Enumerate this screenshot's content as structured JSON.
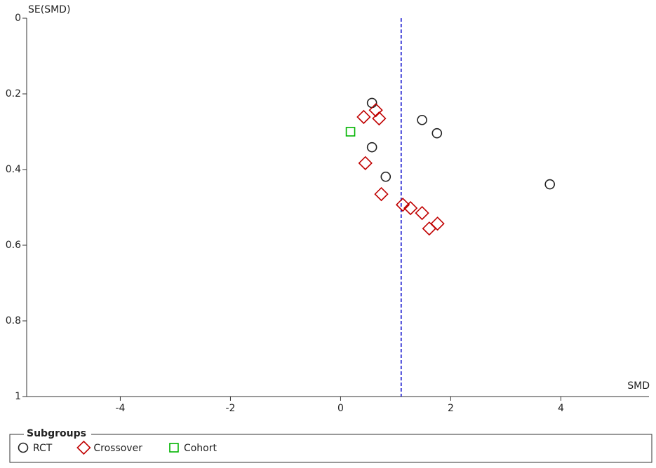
{
  "chart_data": {
    "type": "scatter",
    "x_label": "SMD",
    "y_label": "SE(SMD)",
    "xlim": [
      -5.7,
      5.6
    ],
    "xticks": [
      -4,
      -2,
      0,
      2,
      4
    ],
    "ylim": [
      0,
      1
    ],
    "yticks": [
      0,
      0.2,
      0.4,
      0.6,
      0.8,
      1
    ],
    "y_inverted": true,
    "reference_line": {
      "x": 1.1,
      "color": "#0000cc",
      "style": "dashed"
    },
    "legend_title": "Subgroups",
    "legend_position": "bottom",
    "series": [
      {
        "name": "RCT",
        "color": "#222222",
        "marker": "circle",
        "x": [
          0.57,
          1.48,
          1.75,
          0.57,
          0.82,
          3.8
        ],
        "values": [
          0.224,
          0.269,
          0.304,
          0.341,
          0.419,
          0.439
        ]
      },
      {
        "name": "Crossover",
        "color": "#c00000",
        "marker": "diamond",
        "x": [
          0.42,
          0.64,
          0.7,
          0.45,
          0.74,
          1.13,
          1.27,
          1.48,
          1.61,
          1.76
        ],
        "values": [
          0.261,
          0.243,
          0.265,
          0.383,
          0.465,
          0.493,
          0.502,
          0.515,
          0.556,
          0.543
        ]
      },
      {
        "name": "Cohort",
        "color": "#00b400",
        "marker": "square",
        "x": [
          0.18
        ],
        "values": [
          0.3
        ]
      }
    ]
  }
}
